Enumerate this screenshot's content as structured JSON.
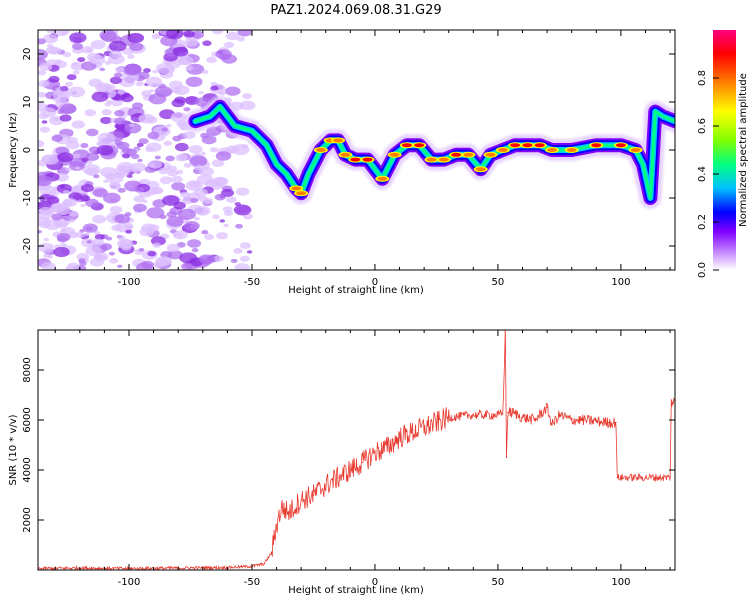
{
  "title": "PAZ1.2024.069.08.31.G29",
  "chart_data": [
    {
      "type": "heatmap",
      "xlabel": "Height of straight line (km)",
      "ylabel": "Frequency (Hz)",
      "xlim": [
        -137,
        122
      ],
      "ylim": [
        -25,
        25
      ],
      "xticks": [
        -100,
        -50,
        0,
        50,
        100
      ],
      "yticks": [
        -20,
        -10,
        0,
        10,
        20
      ],
      "colorbar": {
        "label": "Normalized spectral amplitude",
        "ticks": [
          0.0,
          0.2,
          0.4,
          0.6,
          0.8
        ],
        "range": [
          0,
          1
        ],
        "colors": [
          "#ffffff",
          "#c080ff",
          "#8000ff",
          "#0000ff",
          "#00c0ff",
          "#00ff80",
          "#80ff00",
          "#ffff00",
          "#ff8000",
          "#ff0000",
          "#ff0080"
        ]
      },
      "noise_region_x": [
        -137,
        -50
      ],
      "ridge": {
        "x": [
          -73,
          -67,
          -63,
          -57,
          -50,
          -44,
          -40,
          -36,
          -32,
          -30,
          -27,
          -22,
          -18,
          -15,
          -12,
          -8,
          -3,
          3,
          8,
          13,
          18,
          23,
          28,
          33,
          38,
          43,
          47,
          52,
          57,
          62,
          67,
          72,
          80,
          90,
          100,
          106,
          109,
          112,
          114,
          117,
          122
        ],
        "y": [
          6,
          7,
          9,
          5,
          4,
          1,
          -3,
          -5,
          -8,
          -9,
          -5,
          0,
          2,
          2,
          -1,
          -2,
          -2,
          -6,
          -1,
          1,
          1,
          -2,
          -2,
          -1,
          -1,
          -4,
          -1,
          0,
          1,
          1,
          1,
          0,
          0,
          1,
          1,
          0,
          -3,
          -10,
          8,
          7,
          6
        ],
        "amplitude": [
          0.55,
          0.55,
          0.6,
          0.55,
          0.6,
          0.6,
          0.65,
          0.7,
          0.75,
          0.75,
          0.7,
          0.75,
          0.8,
          0.8,
          0.85,
          0.9,
          0.9,
          0.85,
          0.85,
          0.9,
          0.9,
          0.85,
          0.85,
          0.9,
          0.85,
          0.8,
          0.8,
          0.85,
          0.9,
          0.9,
          0.9,
          0.85,
          0.85,
          0.9,
          0.9,
          0.85,
          0.65,
          0.5,
          0.55,
          0.55,
          0.55
        ]
      }
    },
    {
      "type": "line",
      "xlabel": "Height of straight line (km)",
      "ylabel": "SNR (10 * v/v)",
      "xlim": [
        -137,
        122
      ],
      "ylim": [
        0,
        9600
      ],
      "xticks": [
        -100,
        -50,
        0,
        50,
        100
      ],
      "yticks": [
        2000,
        4000,
        6000,
        8000
      ],
      "color": "#e8392f",
      "series": [
        {
          "x": [
            -137,
            -120,
            -100,
            -80,
            -60,
            -50,
            -45,
            -42,
            -40,
            -38,
            -35,
            -30,
            -25,
            -20,
            -15,
            -10,
            -5,
            0,
            5,
            10,
            15,
            20,
            25,
            30,
            35,
            40,
            45,
            50,
            52,
            53,
            53.5,
            54,
            56,
            60,
            65,
            70,
            72,
            75,
            80,
            85,
            90,
            95,
            98,
            98.5,
            100,
            105,
            110,
            115,
            120,
            120.5,
            122
          ],
          "y": [
            60,
            80,
            60,
            80,
            100,
            150,
            250,
            700,
            1800,
            2500,
            2300,
            2800,
            3000,
            3400,
            3700,
            4000,
            4300,
            4700,
            4900,
            5300,
            5500,
            5700,
            5900,
            6100,
            6150,
            6200,
            6200,
            6200,
            6250,
            9600,
            4500,
            6300,
            6300,
            6100,
            6000,
            6500,
            5800,
            6200,
            6000,
            6000,
            5950,
            5900,
            5900,
            3700,
            3700,
            3700,
            3700,
            3700,
            3700,
            6800,
            6600
          ]
        }
      ],
      "noise_spans": [
        {
          "from": -137,
          "to": -42,
          "amp": 60
        },
        {
          "from": -42,
          "to": 30,
          "amp": 450
        },
        {
          "from": 30,
          "to": 53,
          "amp": 180
        },
        {
          "from": 54,
          "to": 98,
          "amp": 220
        },
        {
          "from": 98.5,
          "to": 120,
          "amp": 150
        },
        {
          "from": 120.5,
          "to": 122,
          "amp": 300
        }
      ]
    }
  ]
}
